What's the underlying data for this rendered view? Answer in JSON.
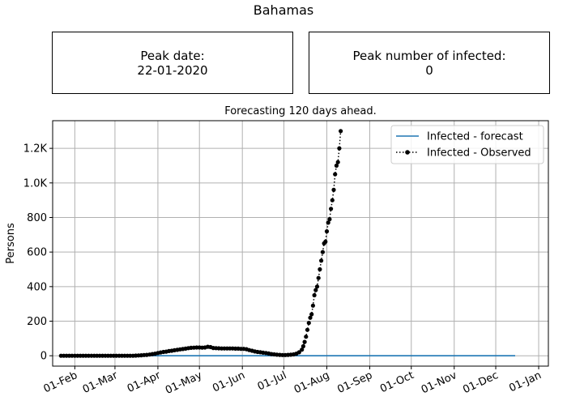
{
  "figure_title": "Bahamas",
  "peak_date": {
    "label": "Peak date:",
    "value": "22-01-2020"
  },
  "peak_number": {
    "label": "Peak number of infected:",
    "value": "0"
  },
  "chart_data": {
    "type": "line",
    "title": "Forecasting 120 days ahead.",
    "xlabel": "",
    "ylabel": "Persons",
    "grid": true,
    "legend_position": "top-right",
    "x_axis_type": "date",
    "xlim": [
      "2020-01-16",
      "2021-01-08"
    ],
    "ylim": [
      -60,
      1360
    ],
    "x_ticks": [
      {
        "date": "2020-02-01",
        "label": "01-Feb"
      },
      {
        "date": "2020-03-01",
        "label": "01-Mar"
      },
      {
        "date": "2020-04-01",
        "label": "01-Apr"
      },
      {
        "date": "2020-05-01",
        "label": "01-May"
      },
      {
        "date": "2020-06-01",
        "label": "01-Jun"
      },
      {
        "date": "2020-07-01",
        "label": "01-Jul"
      },
      {
        "date": "2020-08-01",
        "label": "01-Aug"
      },
      {
        "date": "2020-09-01",
        "label": "01-Sep"
      },
      {
        "date": "2020-10-01",
        "label": "01-Oct"
      },
      {
        "date": "2020-11-01",
        "label": "01-Nov"
      },
      {
        "date": "2020-12-01",
        "label": "01-Dec"
      },
      {
        "date": "2021-01-01",
        "label": "01-Jan"
      }
    ],
    "y_ticks": [
      {
        "value": 0,
        "label": "0"
      },
      {
        "value": 200,
        "label": "200"
      },
      {
        "value": 400,
        "label": "400"
      },
      {
        "value": 600,
        "label": "600"
      },
      {
        "value": 800,
        "label": "800"
      },
      {
        "value": 1000,
        "label": "1.0K"
      },
      {
        "value": 1200,
        "label": "1.2K"
      }
    ],
    "series": [
      {
        "name": "Infected - forecast",
        "color": "#1f77b4",
        "style": "solid",
        "points": [
          [
            "2020-01-22",
            0
          ],
          [
            "2020-12-15",
            0
          ]
        ]
      },
      {
        "name": "Infected - Observed",
        "color": "#000000",
        "style": "dotted-markers",
        "points": [
          [
            "2020-01-22",
            0
          ],
          [
            "2020-01-24",
            0
          ],
          [
            "2020-01-26",
            0
          ],
          [
            "2020-01-28",
            0
          ],
          [
            "2020-01-30",
            0
          ],
          [
            "2020-02-01",
            0
          ],
          [
            "2020-02-03",
            0
          ],
          [
            "2020-02-05",
            0
          ],
          [
            "2020-02-07",
            0
          ],
          [
            "2020-02-09",
            0
          ],
          [
            "2020-02-11",
            0
          ],
          [
            "2020-02-13",
            0
          ],
          [
            "2020-02-15",
            0
          ],
          [
            "2020-02-17",
            0
          ],
          [
            "2020-02-19",
            0
          ],
          [
            "2020-02-21",
            0
          ],
          [
            "2020-02-23",
            0
          ],
          [
            "2020-02-25",
            0
          ],
          [
            "2020-02-27",
            0
          ],
          [
            "2020-02-29",
            0
          ],
          [
            "2020-03-02",
            0
          ],
          [
            "2020-03-04",
            0
          ],
          [
            "2020-03-06",
            0
          ],
          [
            "2020-03-08",
            0
          ],
          [
            "2020-03-10",
            0
          ],
          [
            "2020-03-12",
            0
          ],
          [
            "2020-03-14",
            0
          ],
          [
            "2020-03-16",
            1
          ],
          [
            "2020-03-18",
            2
          ],
          [
            "2020-03-20",
            3
          ],
          [
            "2020-03-22",
            4
          ],
          [
            "2020-03-24",
            5
          ],
          [
            "2020-03-26",
            7
          ],
          [
            "2020-03-28",
            10
          ],
          [
            "2020-03-30",
            12
          ],
          [
            "2020-04-01",
            16
          ],
          [
            "2020-04-03",
            19
          ],
          [
            "2020-04-05",
            22
          ],
          [
            "2020-04-07",
            24
          ],
          [
            "2020-04-09",
            27
          ],
          [
            "2020-04-11",
            29
          ],
          [
            "2020-04-13",
            32
          ],
          [
            "2020-04-15",
            34
          ],
          [
            "2020-04-17",
            37
          ],
          [
            "2020-04-19",
            39
          ],
          [
            "2020-04-21",
            41
          ],
          [
            "2020-04-23",
            44
          ],
          [
            "2020-04-25",
            46
          ],
          [
            "2020-04-27",
            47
          ],
          [
            "2020-04-29",
            48
          ],
          [
            "2020-05-01",
            48
          ],
          [
            "2020-05-03",
            47
          ],
          [
            "2020-05-05",
            48
          ],
          [
            "2020-05-07",
            52
          ],
          [
            "2020-05-09",
            50
          ],
          [
            "2020-05-11",
            45
          ],
          [
            "2020-05-13",
            44
          ],
          [
            "2020-05-15",
            43
          ],
          [
            "2020-05-17",
            42
          ],
          [
            "2020-05-19",
            42
          ],
          [
            "2020-05-21",
            42
          ],
          [
            "2020-05-23",
            42
          ],
          [
            "2020-05-25",
            42
          ],
          [
            "2020-05-27",
            41
          ],
          [
            "2020-05-29",
            41
          ],
          [
            "2020-05-31",
            40
          ],
          [
            "2020-06-02",
            40
          ],
          [
            "2020-06-04",
            38
          ],
          [
            "2020-06-06",
            33
          ],
          [
            "2020-06-08",
            29
          ],
          [
            "2020-06-10",
            25
          ],
          [
            "2020-06-12",
            22
          ],
          [
            "2020-06-14",
            20
          ],
          [
            "2020-06-16",
            18
          ],
          [
            "2020-06-18",
            16
          ],
          [
            "2020-06-20",
            13
          ],
          [
            "2020-06-22",
            10
          ],
          [
            "2020-06-24",
            8
          ],
          [
            "2020-06-26",
            6
          ],
          [
            "2020-06-28",
            5
          ],
          [
            "2020-06-30",
            4
          ],
          [
            "2020-07-02",
            4
          ],
          [
            "2020-07-04",
            5
          ],
          [
            "2020-07-06",
            6
          ],
          [
            "2020-07-08",
            8
          ],
          [
            "2020-07-10",
            12
          ],
          [
            "2020-07-12",
            20
          ],
          [
            "2020-07-14",
            35
          ],
          [
            "2020-07-15",
            55
          ],
          [
            "2020-07-16",
            80
          ],
          [
            "2020-07-17",
            110
          ],
          [
            "2020-07-18",
            150
          ],
          [
            "2020-07-19",
            190
          ],
          [
            "2020-07-20",
            220
          ],
          [
            "2020-07-21",
            240
          ],
          [
            "2020-07-22",
            290
          ],
          [
            "2020-07-23",
            350
          ],
          [
            "2020-07-24",
            380
          ],
          [
            "2020-07-25",
            400
          ],
          [
            "2020-07-26",
            450
          ],
          [
            "2020-07-27",
            500
          ],
          [
            "2020-07-28",
            550
          ],
          [
            "2020-07-29",
            600
          ],
          [
            "2020-07-30",
            650
          ],
          [
            "2020-07-31",
            660
          ],
          [
            "2020-08-01",
            720
          ],
          [
            "2020-08-02",
            770
          ],
          [
            "2020-08-03",
            790
          ],
          [
            "2020-08-04",
            850
          ],
          [
            "2020-08-05",
            900
          ],
          [
            "2020-08-06",
            960
          ],
          [
            "2020-08-07",
            1050
          ],
          [
            "2020-08-08",
            1100
          ],
          [
            "2020-08-09",
            1120
          ],
          [
            "2020-08-10",
            1200
          ],
          [
            "2020-08-11",
            1300
          ]
        ]
      }
    ]
  }
}
